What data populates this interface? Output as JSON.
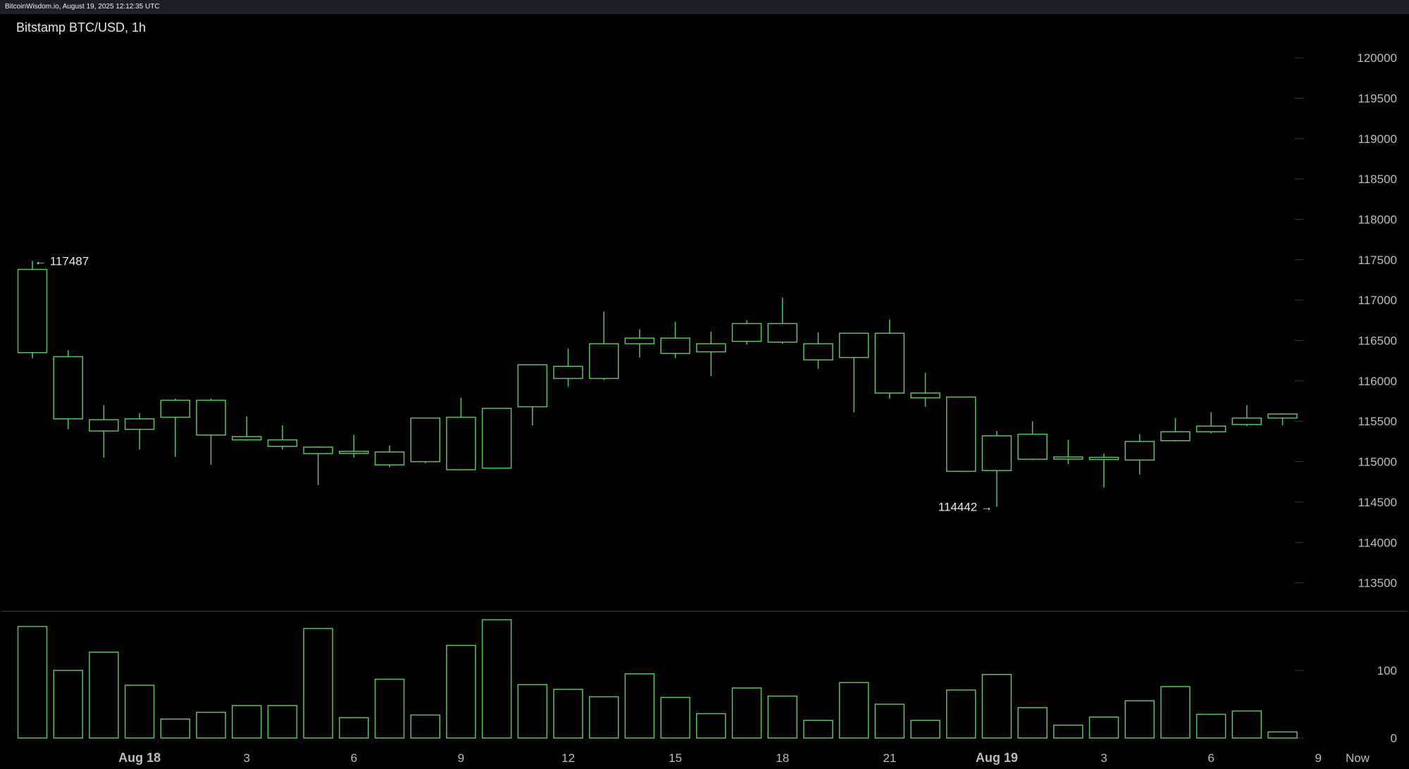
{
  "header": {
    "caption": "BitcoinWisdom.io, August 19, 2025 12:12:35 UTC"
  },
  "chart_data": {
    "type": "candlestick",
    "title": "Bitstamp BTC/USD, 1h",
    "ylim": [
      113200,
      120350
    ],
    "y_ticks": [
      "120000",
      "119500",
      "119000",
      "118500",
      "118000",
      "117500",
      "117000",
      "116500",
      "116000",
      "115500",
      "115000",
      "114500",
      "114000",
      "113500"
    ],
    "volume_ylim": [
      0,
      175
    ],
    "volume_ticks": [
      "100",
      "0"
    ],
    "x_ticks": [
      {
        "label": "Aug 18",
        "index": 3,
        "bold": true
      },
      {
        "label": "3",
        "index": 6,
        "bold": false
      },
      {
        "label": "6",
        "index": 9,
        "bold": false
      },
      {
        "label": "9",
        "index": 12,
        "bold": false
      },
      {
        "label": "12",
        "index": 15,
        "bold": false
      },
      {
        "label": "15",
        "index": 18,
        "bold": false
      },
      {
        "label": "18",
        "index": 21,
        "bold": false
      },
      {
        "label": "21",
        "index": 24,
        "bold": false
      },
      {
        "label": "Aug 19",
        "index": 27,
        "bold": true
      },
      {
        "label": "3",
        "index": 30,
        "bold": false
      },
      {
        "label": "6",
        "index": 33,
        "bold": false
      },
      {
        "label": "9",
        "index": 36,
        "bold": false
      },
      {
        "label": "Now",
        "index": 37.1,
        "bold": false
      }
    ],
    "candles": [
      {
        "o": 116350,
        "h": 117487,
        "l": 116280,
        "c": 117380,
        "v": 165
      },
      {
        "o": 115530,
        "h": 116380,
        "l": 115400,
        "c": 116300,
        "v": 100
      },
      {
        "o": 115380,
        "h": 115700,
        "l": 115050,
        "c": 115520,
        "v": 127
      },
      {
        "o": 115400,
        "h": 115600,
        "l": 115150,
        "c": 115530,
        "v": 78
      },
      {
        "o": 115550,
        "h": 115780,
        "l": 115060,
        "c": 115760,
        "v": 28
      },
      {
        "o": 115330,
        "h": 115780,
        "l": 114960,
        "c": 115760,
        "v": 38
      },
      {
        "o": 115270,
        "h": 115560,
        "l": 115260,
        "c": 115310,
        "v": 48
      },
      {
        "o": 115190,
        "h": 115450,
        "l": 115150,
        "c": 115270,
        "v": 48
      },
      {
        "o": 115100,
        "h": 115190,
        "l": 114710,
        "c": 115180,
        "v": 162
      },
      {
        "o": 115110,
        "h": 115330,
        "l": 115050,
        "c": 115120,
        "v": 30
      },
      {
        "o": 114960,
        "h": 115200,
        "l": 114930,
        "c": 115120,
        "v": 87
      },
      {
        "o": 115000,
        "h": 115540,
        "l": 114980,
        "c": 115540,
        "v": 34
      },
      {
        "o": 114900,
        "h": 115790,
        "l": 114890,
        "c": 115550,
        "v": 137
      },
      {
        "o": 114920,
        "h": 115660,
        "l": 114920,
        "c": 115660,
        "v": 175
      },
      {
        "o": 115680,
        "h": 116200,
        "l": 115450,
        "c": 116200,
        "v": 79
      },
      {
        "o": 116030,
        "h": 116400,
        "l": 115930,
        "c": 116180,
        "v": 72
      },
      {
        "o": 116030,
        "h": 116860,
        "l": 116010,
        "c": 116460,
        "v": 61
      },
      {
        "o": 116460,
        "h": 116640,
        "l": 116290,
        "c": 116530,
        "v": 95
      },
      {
        "o": 116340,
        "h": 116730,
        "l": 116280,
        "c": 116530,
        "v": 60
      },
      {
        "o": 116360,
        "h": 116610,
        "l": 116060,
        "c": 116460,
        "v": 36
      },
      {
        "o": 116490,
        "h": 116750,
        "l": 116450,
        "c": 116710,
        "v": 74
      },
      {
        "o": 116480,
        "h": 117030,
        "l": 116460,
        "c": 116710,
        "v": 62
      },
      {
        "o": 116260,
        "h": 116600,
        "l": 116150,
        "c": 116460,
        "v": 26
      },
      {
        "o": 116290,
        "h": 116590,
        "l": 115610,
        "c": 116590,
        "v": 82
      },
      {
        "o": 115850,
        "h": 116760,
        "l": 115780,
        "c": 116590,
        "v": 50
      },
      {
        "o": 115790,
        "h": 116100,
        "l": 115680,
        "c": 115850,
        "v": 26
      },
      {
        "o": 114880,
        "h": 115800,
        "l": 114870,
        "c": 115800,
        "v": 71
      },
      {
        "o": 114890,
        "h": 115380,
        "l": 114442,
        "c": 115320,
        "v": 94
      },
      {
        "o": 115030,
        "h": 115500,
        "l": 115020,
        "c": 115340,
        "v": 45
      },
      {
        "o": 115040,
        "h": 115270,
        "l": 114970,
        "c": 115050,
        "v": 19
      },
      {
        "o": 115030,
        "h": 115100,
        "l": 114680,
        "c": 115050,
        "v": 31
      },
      {
        "o": 115020,
        "h": 115340,
        "l": 114840,
        "c": 115250,
        "v": 55
      },
      {
        "o": 115260,
        "h": 115540,
        "l": 115250,
        "c": 115370,
        "v": 76
      },
      {
        "o": 115370,
        "h": 115610,
        "l": 115350,
        "c": 115440,
        "v": 35
      },
      {
        "o": 115460,
        "h": 115700,
        "l": 115440,
        "c": 115540,
        "v": 40
      },
      {
        "o": 115540,
        "h": 115600,
        "l": 115450,
        "c": 115590,
        "v": 9
      }
    ],
    "annotations": [
      {
        "text": "← 117487",
        "candle": 0,
        "price": 117487,
        "side": "right"
      },
      {
        "text": "114442 →",
        "candle": 27,
        "price": 114442,
        "side": "left"
      }
    ],
    "colors": {
      "up": "#57c45c",
      "down": "#a01010",
      "down_edge": "#cc2020",
      "grid": "#3a3a3a",
      "divider": "#4a4a4a"
    }
  }
}
